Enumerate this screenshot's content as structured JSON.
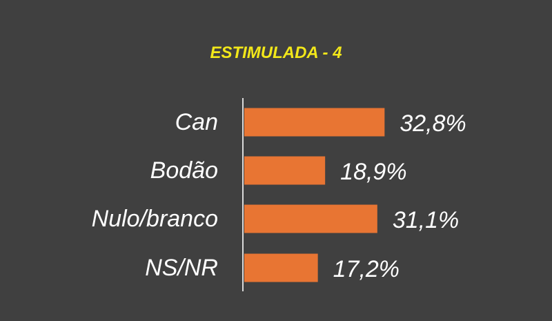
{
  "chart_data": {
    "type": "bar",
    "orientation": "horizontal",
    "title": "ESTIMULADA - 4",
    "categories": [
      "Can",
      "Bodão",
      "Nulo/branco",
      "NS/NR"
    ],
    "values": [
      32.8,
      18.9,
      31.1,
      17.2
    ],
    "value_labels": [
      "32,8%",
      "18,9%",
      "31,1%",
      "17,2%"
    ],
    "unit": "%",
    "grid": false,
    "legend": "none",
    "colors": {
      "background": "#404040",
      "bar": "#e87533",
      "title": "#f2e71a",
      "text": "#ffffff",
      "axis": "#d9d9d9"
    }
  }
}
